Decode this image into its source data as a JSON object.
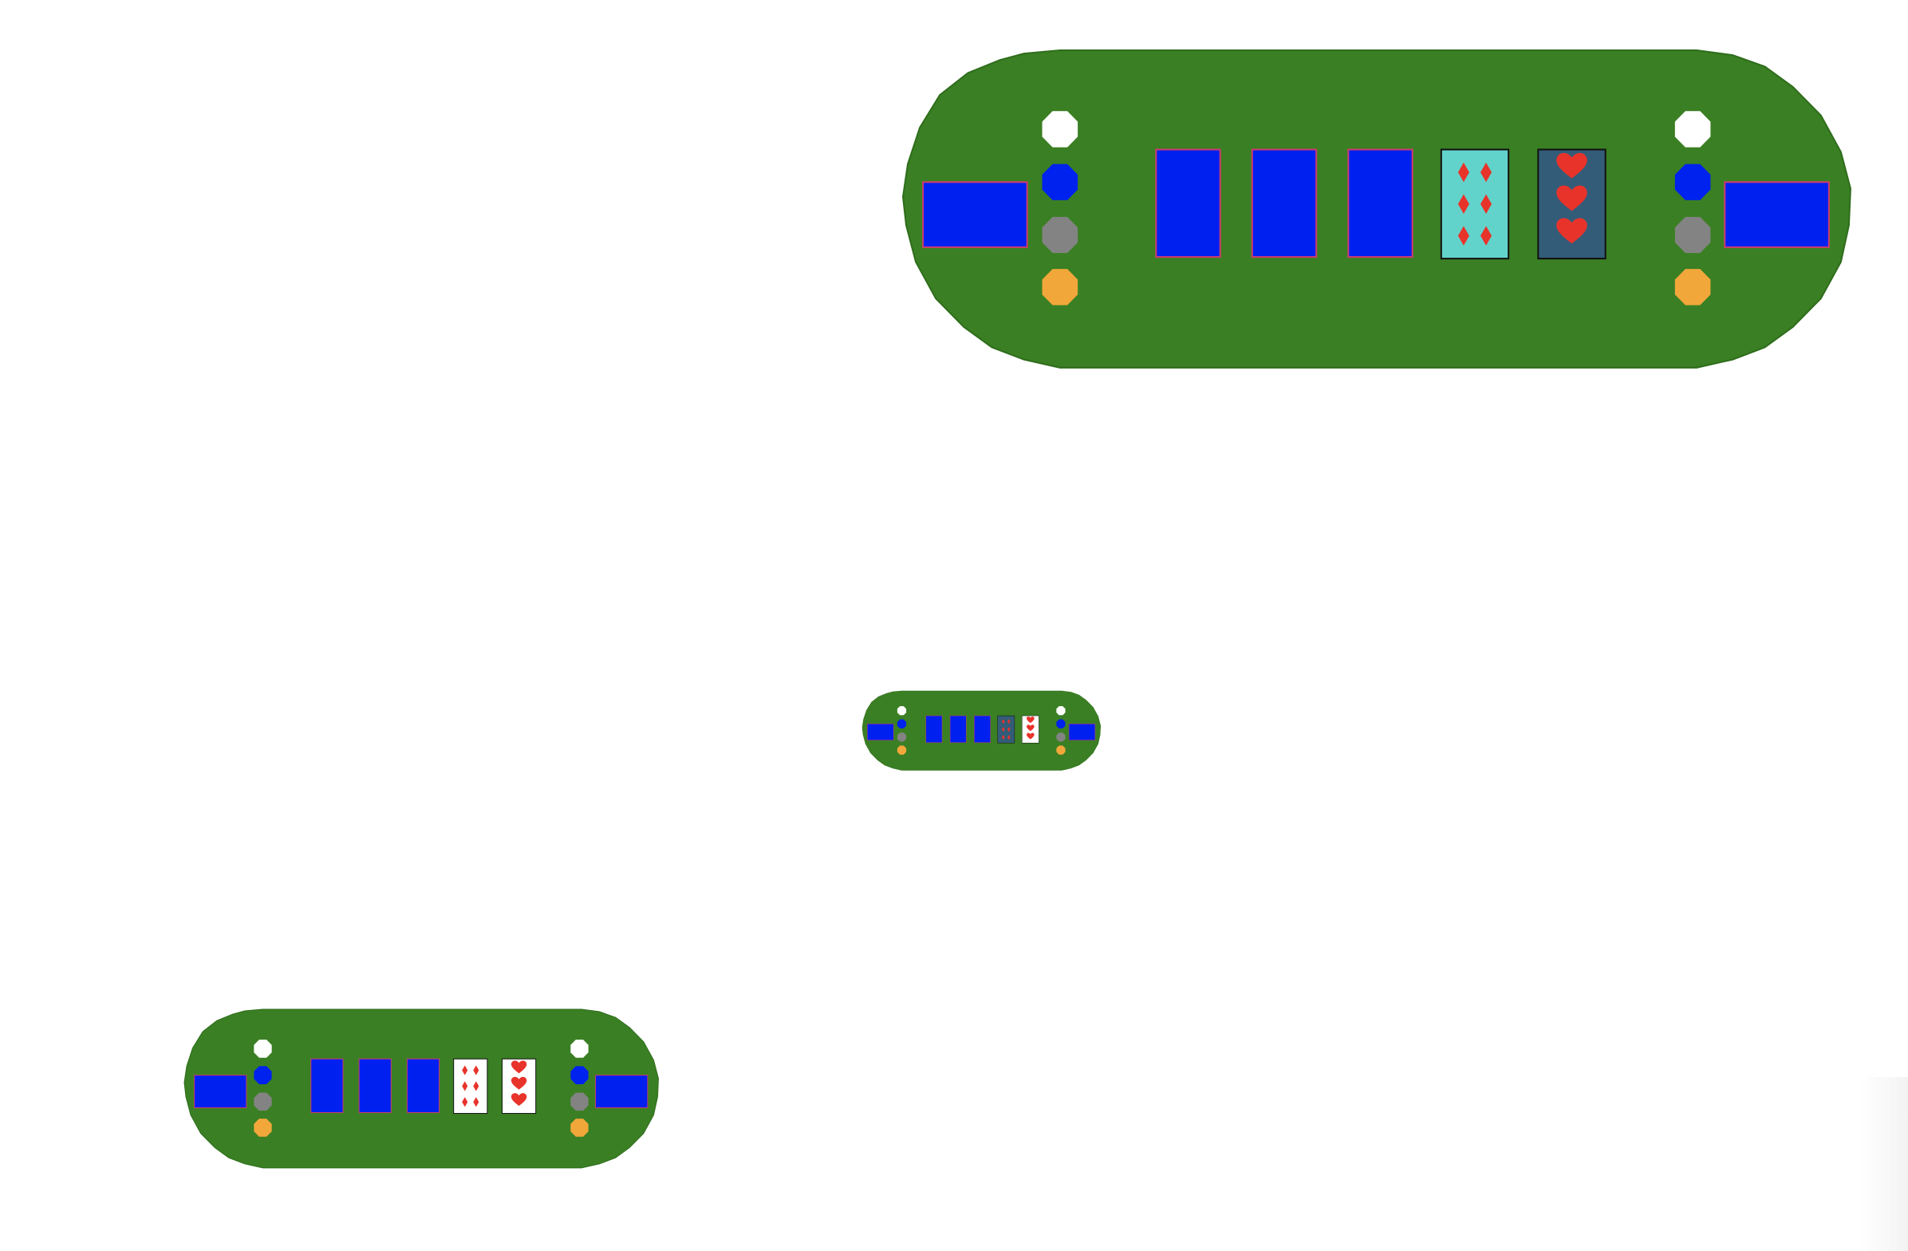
{
  "colors": {
    "felt": "#3a7f23",
    "card_back": "#0020f0",
    "card_back_border": "#cf3b6e",
    "pip_red": "#e8332b",
    "outline": "#111111",
    "chip_white": "#ffffff",
    "chip_blue": "#0022ee",
    "chip_gray": "#838383",
    "chip_orange": "#f2a73b"
  },
  "chip_stack": [
    {
      "name": "white-chip",
      "color": "#ffffff"
    },
    {
      "name": "blue-chip",
      "color": "#0022ee"
    },
    {
      "name": "gray-chip",
      "color": "#838383"
    },
    {
      "name": "orange-chip",
      "color": "#f2a73b"
    }
  ],
  "tables": [
    {
      "name": "poker-table-large",
      "side_slots": [
        "left-seat-card-back",
        "right-seat-card-back"
      ],
      "community_cards": [
        {
          "name": "community-card-1",
          "face": "back"
        },
        {
          "name": "community-card-2",
          "face": "back"
        },
        {
          "name": "community-card-3",
          "face": "back"
        },
        {
          "name": "community-card-4",
          "face": "up",
          "suit": "diamonds",
          "rank": "6",
          "suit_icon": "diamond-icon",
          "background": "#62d3cb"
        },
        {
          "name": "community-card-5",
          "face": "up",
          "suit": "hearts",
          "rank": "3",
          "suit_icon": "heart-icon",
          "background": "#335c78"
        }
      ]
    },
    {
      "name": "poker-table-small",
      "side_slots": [
        "left-seat-card-back",
        "right-seat-card-back"
      ],
      "community_cards": [
        {
          "name": "community-card-1",
          "face": "back"
        },
        {
          "name": "community-card-2",
          "face": "back"
        },
        {
          "name": "community-card-3",
          "face": "back"
        },
        {
          "name": "community-card-4",
          "face": "up",
          "suit": "diamonds",
          "rank": "6",
          "suit_icon": "diamond-icon",
          "background": "#335c78"
        },
        {
          "name": "community-card-5",
          "face": "up",
          "suit": "hearts",
          "rank": "3",
          "suit_icon": "heart-icon",
          "background": "#ffffff"
        }
      ]
    },
    {
      "name": "poker-table-medium",
      "side_slots": [
        "left-seat-card-back",
        "right-seat-card-back"
      ],
      "community_cards": [
        {
          "name": "community-card-1",
          "face": "back"
        },
        {
          "name": "community-card-2",
          "face": "back"
        },
        {
          "name": "community-card-3",
          "face": "back"
        },
        {
          "name": "community-card-4",
          "face": "up",
          "suit": "diamonds",
          "rank": "6",
          "suit_icon": "diamond-icon",
          "background": "#ffffff"
        },
        {
          "name": "community-card-5",
          "face": "up",
          "suit": "hearts",
          "rank": "3",
          "suit_icon": "heart-icon",
          "background": "#ffffff"
        }
      ]
    }
  ]
}
